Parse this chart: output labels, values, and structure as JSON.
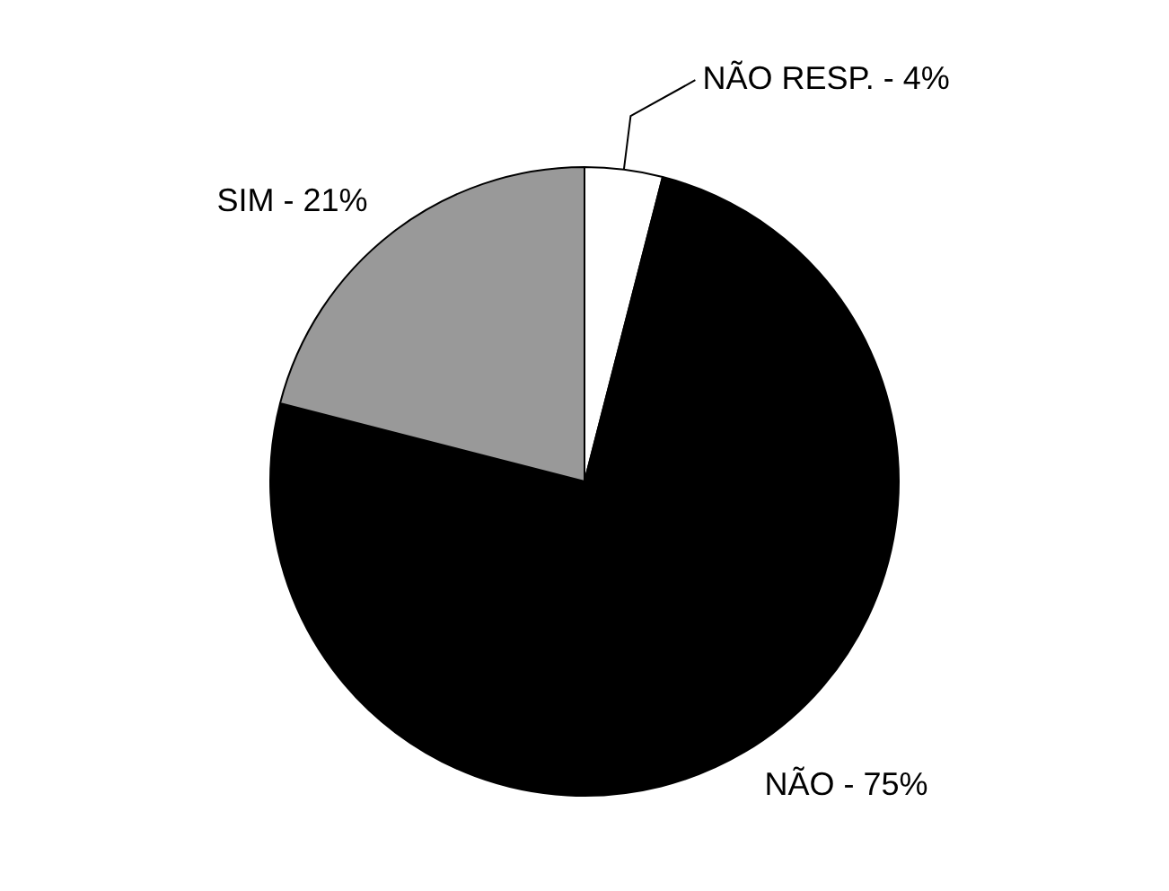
{
  "chart_data": {
    "type": "pie",
    "categories": [
      "NÃO RESP.",
      "NÃO",
      "SIM"
    ],
    "values": [
      4,
      75,
      21
    ],
    "value_labels": [
      "4%",
      "75%",
      "21%"
    ],
    "colors": [
      "#ffffff",
      "#000000",
      "#999999"
    ],
    "legend": false
  }
}
